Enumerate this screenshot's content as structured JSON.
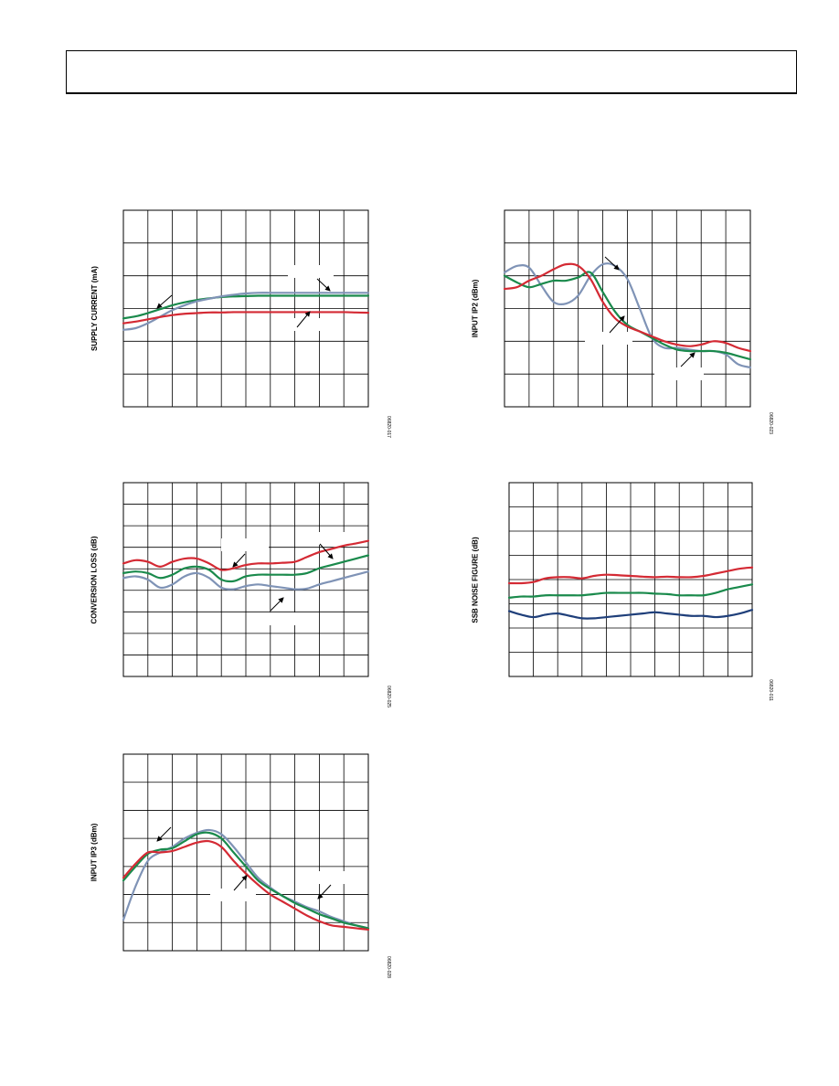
{
  "page": {
    "header_text": ""
  },
  "colors": {
    "red": "#d42a34",
    "green": "#1a8a4c",
    "gray_blue": "#7f93b6",
    "navy": "#1f3f7a",
    "grid": "#000000"
  },
  "chart_data": [
    {
      "id": "supply-current",
      "type": "line",
      "ylabel": "SUPPLY CURRENT (mA)",
      "figure_code": "06820-017",
      "x": [
        0,
        0.5,
        1,
        1.5,
        2,
        2.5,
        3,
        3.5,
        4,
        4.5,
        5,
        5.5,
        6,
        6.5,
        7,
        7.5,
        8,
        8.5,
        9,
        9.5,
        10
      ],
      "xlim": [
        0,
        10
      ],
      "ylim": [
        0,
        6
      ],
      "x_gridlines": 10,
      "y_gridlines": 6,
      "series": [
        {
          "color": "#1a8a4c",
          "values": [
            2.7,
            2.76,
            2.86,
            2.98,
            3.1,
            3.19,
            3.26,
            3.31,
            3.35,
            3.37,
            3.38,
            3.39,
            3.39,
            3.39,
            3.39,
            3.39,
            3.39,
            3.39,
            3.39,
            3.39,
            3.39
          ]
        },
        {
          "color": "#7f93b6",
          "values": [
            2.35,
            2.4,
            2.55,
            2.75,
            2.95,
            3.1,
            3.22,
            3.3,
            3.37,
            3.42,
            3.46,
            3.48,
            3.48,
            3.48,
            3.48,
            3.48,
            3.48,
            3.48,
            3.48,
            3.48,
            3.48
          ]
        },
        {
          "color": "#d42a34",
          "values": [
            2.55,
            2.6,
            2.67,
            2.74,
            2.8,
            2.84,
            2.86,
            2.88,
            2.88,
            2.89,
            2.89,
            2.89,
            2.89,
            2.89,
            2.89,
            2.89,
            2.89,
            2.89,
            2.89,
            2.88,
            2.87
          ]
        }
      ]
    },
    {
      "id": "input-ip2",
      "type": "line",
      "ylabel": "INPUT IP2 (dBm)",
      "figure_code": "06820-023",
      "x": [
        0,
        0.5,
        1,
        1.5,
        2,
        2.5,
        3,
        3.5,
        4,
        4.5,
        5,
        5.5,
        6,
        6.5,
        7,
        7.5,
        8,
        8.5,
        9,
        9.5,
        10
      ],
      "xlim": [
        0,
        10
      ],
      "ylim": [
        0,
        6
      ],
      "x_gridlines": 10,
      "y_gridlines": 6,
      "series": [
        {
          "color": "#7f93b6",
          "values": [
            4.1,
            4.3,
            4.25,
            3.7,
            3.2,
            3.15,
            3.4,
            4.0,
            4.35,
            4.3,
            3.9,
            3.0,
            2.1,
            1.8,
            1.8,
            1.75,
            1.7,
            1.7,
            1.6,
            1.3,
            1.2
          ]
        },
        {
          "color": "#1a8a4c",
          "values": [
            4.0,
            3.8,
            3.65,
            3.75,
            3.85,
            3.85,
            3.95,
            4.1,
            3.5,
            2.9,
            2.5,
            2.3,
            2.1,
            1.9,
            1.75,
            1.7,
            1.7,
            1.7,
            1.65,
            1.55,
            1.45
          ]
        },
        {
          "color": "#d42a34",
          "values": [
            3.6,
            3.65,
            3.85,
            4.0,
            4.2,
            4.35,
            4.3,
            3.9,
            3.2,
            2.7,
            2.45,
            2.3,
            2.15,
            2.0,
            1.9,
            1.85,
            1.9,
            2.0,
            1.95,
            1.8,
            1.7
          ]
        }
      ]
    },
    {
      "id": "conversion-loss",
      "type": "line",
      "ylabel": "CONVERSION LOSS (dB)",
      "figure_code": "06820-025",
      "x": [
        0,
        0.5,
        1,
        1.5,
        2,
        2.5,
        3,
        3.5,
        4,
        4.5,
        5,
        5.5,
        6,
        6.5,
        7,
        7.5,
        8,
        8.5,
        9,
        9.5,
        10
      ],
      "xlim": [
        0,
        10
      ],
      "ylim": [
        0,
        6
      ],
      "x_gridlines": 10,
      "y_gridlines": 9,
      "series": [
        {
          "color": "#d42a34",
          "values": [
            3.5,
            3.6,
            3.55,
            3.4,
            3.55,
            3.65,
            3.65,
            3.5,
            3.3,
            3.35,
            3.45,
            3.5,
            3.5,
            3.52,
            3.55,
            3.7,
            3.85,
            3.95,
            4.05,
            4.12,
            4.2
          ]
        },
        {
          "color": "#1a8a4c",
          "values": [
            3.2,
            3.25,
            3.2,
            3.05,
            3.15,
            3.35,
            3.4,
            3.3,
            3.0,
            2.95,
            3.1,
            3.15,
            3.15,
            3.15,
            3.15,
            3.2,
            3.35,
            3.45,
            3.55,
            3.65,
            3.75
          ]
        },
        {
          "color": "#7f93b6",
          "values": [
            3.05,
            3.1,
            3.0,
            2.75,
            2.85,
            3.1,
            3.2,
            3.05,
            2.75,
            2.7,
            2.8,
            2.85,
            2.8,
            2.75,
            2.7,
            2.72,
            2.85,
            2.95,
            3.05,
            3.15,
            3.25
          ]
        }
      ]
    },
    {
      "id": "ssb-noise-figure",
      "type": "line",
      "ylabel": "SSB NOISE FIGURE (dB)",
      "figure_code": "06820-011",
      "x": [
        0,
        0.5,
        1,
        1.5,
        2,
        2.5,
        3,
        3.5,
        4,
        4.5,
        5,
        5.5,
        6,
        6.5,
        7,
        7.5,
        8,
        8.5,
        9,
        9.5,
        10
      ],
      "xlim": [
        0,
        10
      ],
      "ylim": [
        0,
        8
      ],
      "x_gridlines": 10,
      "y_gridlines": 8,
      "series": [
        {
          "color": "#d42a34",
          "values": [
            3.85,
            3.85,
            3.9,
            4.05,
            4.1,
            4.1,
            4.05,
            4.15,
            4.2,
            4.18,
            4.15,
            4.12,
            4.1,
            4.12,
            4.1,
            4.1,
            4.15,
            4.25,
            4.35,
            4.45,
            4.5
          ]
        },
        {
          "color": "#1a8a4c",
          "values": [
            3.25,
            3.3,
            3.3,
            3.35,
            3.35,
            3.35,
            3.35,
            3.4,
            3.45,
            3.45,
            3.45,
            3.45,
            3.42,
            3.4,
            3.35,
            3.35,
            3.35,
            3.45,
            3.6,
            3.7,
            3.8
          ]
        },
        {
          "color": "#1f3f7a",
          "values": [
            2.7,
            2.55,
            2.45,
            2.55,
            2.6,
            2.5,
            2.4,
            2.4,
            2.45,
            2.5,
            2.55,
            2.6,
            2.65,
            2.6,
            2.55,
            2.5,
            2.5,
            2.45,
            2.5,
            2.6,
            2.75
          ]
        }
      ]
    },
    {
      "id": "input-ip3",
      "type": "line",
      "ylabel": "INPUT IP3 (dBm)",
      "figure_code": "06820-028",
      "x": [
        0,
        0.5,
        1,
        1.5,
        2,
        2.5,
        3,
        3.5,
        4,
        4.5,
        5,
        5.5,
        6,
        6.5,
        7,
        7.5,
        8,
        8.5,
        9,
        9.5,
        10
      ],
      "xlim": [
        0,
        10
      ],
      "ylim": [
        0,
        7
      ],
      "x_gridlines": 10,
      "y_gridlines": 7,
      "series": [
        {
          "color": "#7f93b6",
          "values": [
            1.1,
            2.3,
            3.2,
            3.5,
            3.7,
            4.0,
            4.2,
            4.3,
            4.15,
            3.7,
            3.15,
            2.6,
            2.25,
            1.95,
            1.75,
            1.55,
            1.4,
            1.2,
            1.05,
            0.9,
            0.8
          ]
        },
        {
          "color": "#1a8a4c",
          "values": [
            2.5,
            3.0,
            3.45,
            3.6,
            3.65,
            3.9,
            4.15,
            4.2,
            4.0,
            3.5,
            3.0,
            2.5,
            2.2,
            1.95,
            1.7,
            1.5,
            1.3,
            1.15,
            1.0,
            0.9,
            0.8
          ]
        },
        {
          "color": "#d42a34",
          "values": [
            2.6,
            3.1,
            3.5,
            3.5,
            3.55,
            3.7,
            3.85,
            3.9,
            3.7,
            3.2,
            2.75,
            2.35,
            2.0,
            1.75,
            1.5,
            1.25,
            1.05,
            0.9,
            0.85,
            0.8,
            0.75
          ]
        }
      ]
    }
  ]
}
